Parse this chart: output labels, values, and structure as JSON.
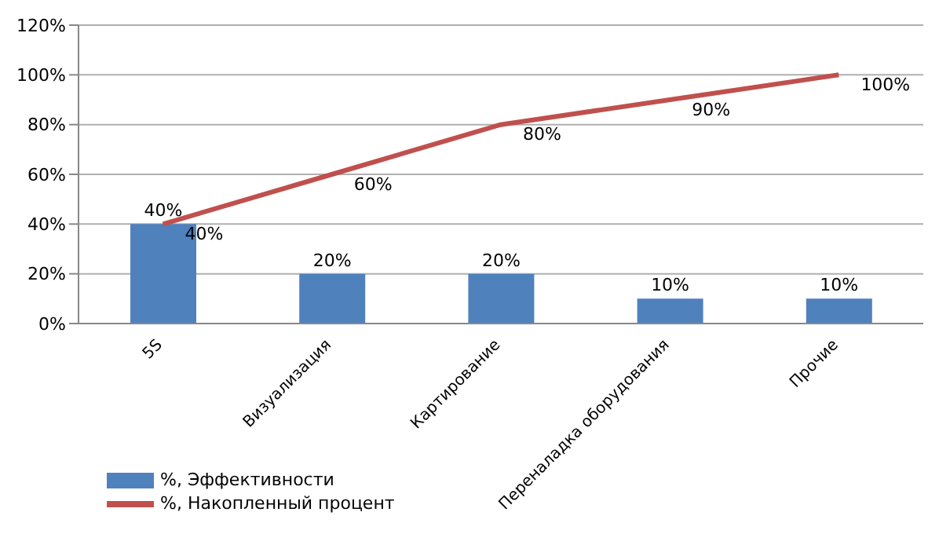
{
  "chart_data": {
    "type": "bar",
    "categories": [
      "5S",
      "Визуализация",
      "Картирование",
      "Переналадка оборудования",
      "Прочие"
    ],
    "series": [
      {
        "name": "%, Эффективности",
        "color": "#4f81bd",
        "values": [
          40,
          20,
          20,
          10,
          10
        ],
        "value_labels": [
          "40%",
          "20%",
          "20%",
          "10%",
          "10%"
        ]
      },
      {
        "name": "%, Накопленный процент",
        "type": "line",
        "color": "#c0504d",
        "values": [
          40,
          60,
          80,
          90,
          100
        ],
        "value_labels": [
          "40%",
          "60%",
          "80%",
          "90%",
          "100%"
        ]
      }
    ],
    "ylim": [
      0,
      120
    ],
    "yticks": [
      {
        "value": 0,
        "label": "0%"
      },
      {
        "value": 20,
        "label": "20%"
      },
      {
        "value": 40,
        "label": "40%"
      },
      {
        "value": 60,
        "label": "60%"
      },
      {
        "value": 80,
        "label": "80%"
      },
      {
        "value": 100,
        "label": "100%"
      },
      {
        "value": 120,
        "label": "120%"
      }
    ],
    "grid": "y",
    "legend": "bottom left",
    "marker": "none"
  }
}
